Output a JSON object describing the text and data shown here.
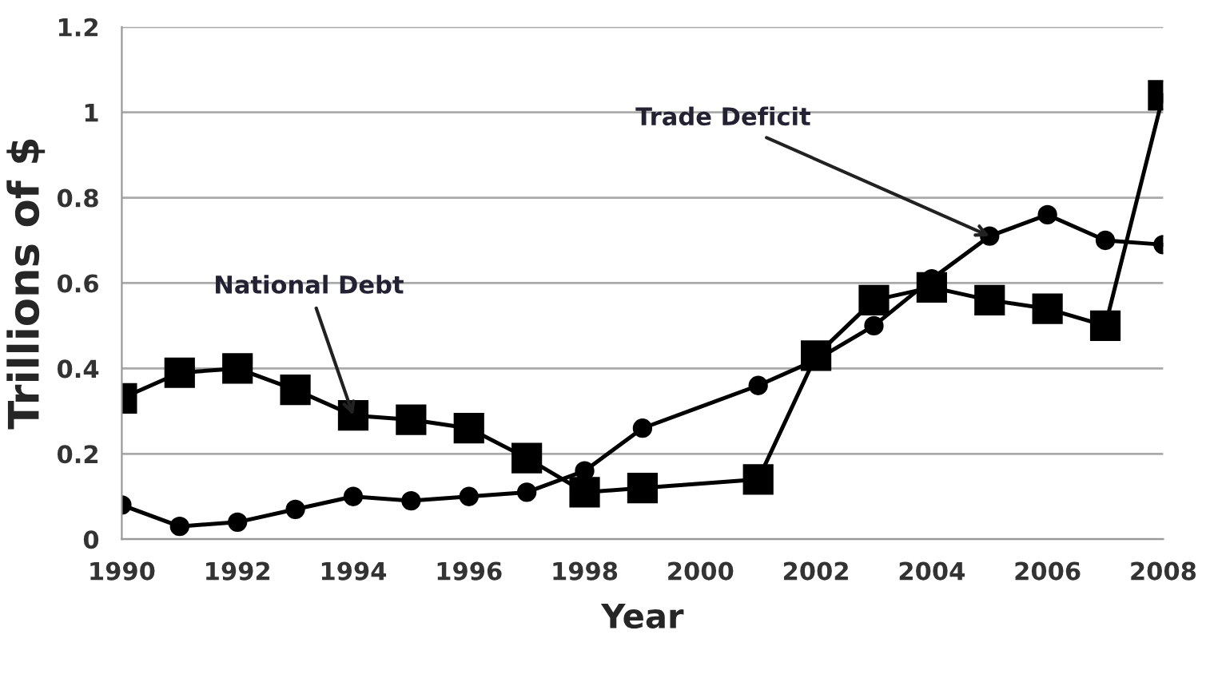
{
  "chart_data": {
    "type": "line",
    "ylabel": "Trillions of $",
    "xlabel": "Year",
    "series": [
      {
        "color": "#000000",
        "marker": "square",
        "x": [
          1990,
          1991,
          1992,
          1993,
          1994,
          1995,
          1996,
          1997,
          1998,
          1999,
          2001,
          2002,
          2003,
          2004,
          2005,
          2006,
          2007,
          2008
        ],
        "values": [
          0.33,
          0.39,
          0.4,
          0.35,
          0.29,
          0.28,
          0.26,
          0.19,
          0.11,
          0.12,
          0.14,
          0.43,
          0.56,
          0.59,
          0.56,
          0.54,
          0.5,
          1.04
        ]
      },
      {
        "color": "#000000",
        "marker": "circle",
        "x": [
          1990,
          1991,
          1992,
          1993,
          1994,
          1995,
          1996,
          1997,
          1998,
          1999,
          2001,
          2002,
          2003,
          2004,
          2005,
          2006,
          2007,
          2008
        ],
        "values": [
          0.08,
          0.03,
          0.04,
          0.07,
          0.1,
          0.09,
          0.1,
          0.11,
          0.16,
          0.26,
          0.36,
          0.42,
          0.5,
          0.61,
          0.71,
          0.76,
          0.7,
          0.69
        ]
      }
    ],
    "annotations": [
      {
        "text": "National Debt",
        "x": 1994,
        "y": 0.29
      },
      {
        "text": "Trade Deficit",
        "x": 2005,
        "y": 0.71
      }
    ],
    "xlim": [
      1990,
      2008
    ],
    "xticks": [
      1990,
      1992,
      1994,
      1996,
      1998,
      2000,
      2002,
      2004,
      2006,
      2008
    ],
    "ylim": [
      0,
      1.2
    ],
    "yticks": [
      0,
      0.2,
      0.4,
      0.6,
      0.8,
      1,
      1.2
    ],
    "grid": "y",
    "legend": false,
    "line_style": "solid"
  }
}
